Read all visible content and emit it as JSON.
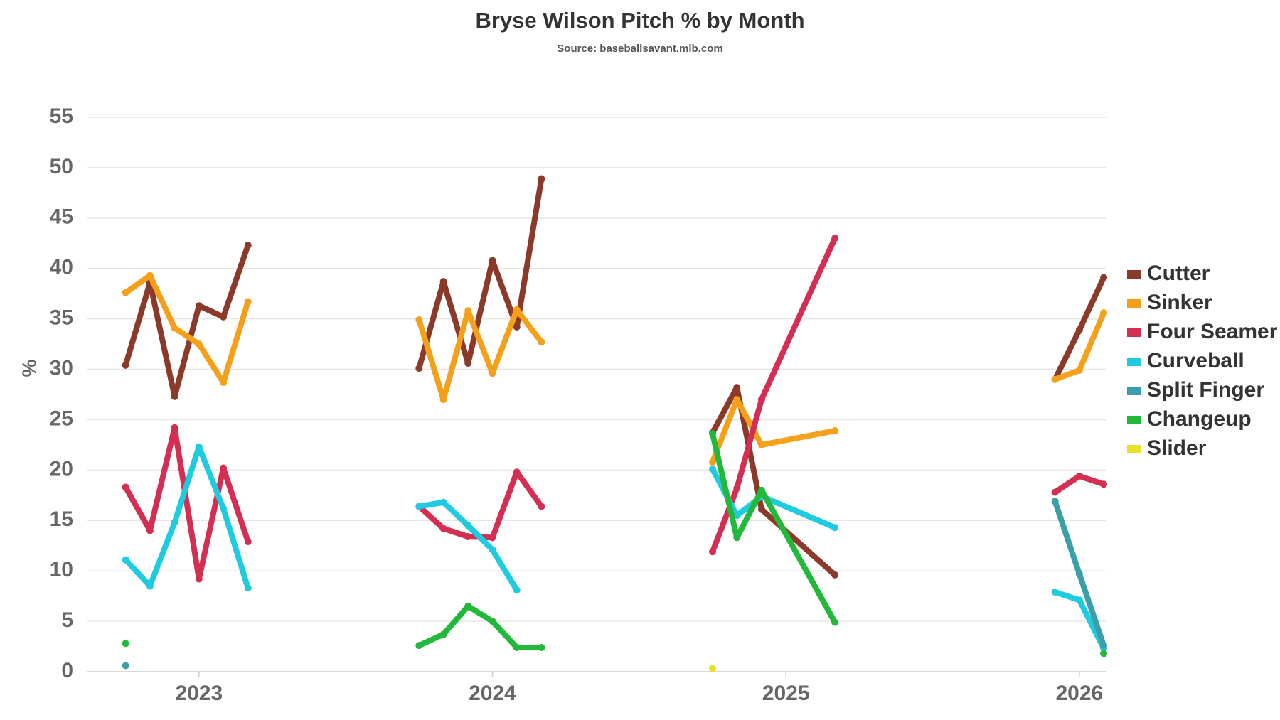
{
  "chart_data": {
    "type": "line",
    "title": "Bryse Wilson Pitch % by Month",
    "subtitle": "Source: baseballsavant.mlb.com",
    "y_label": "%",
    "x": [
      2022.75,
      2022.833,
      2022.917,
      2023.0,
      2023.083,
      2023.167,
      2023.5,
      2023.75,
      2023.833,
      2023.917,
      2024.0,
      2024.083,
      2024.167,
      2024.5,
      2024.75,
      2024.833,
      2024.917,
      2025.167,
      2025.5,
      2025.917,
      2026.0,
      2026.083
    ],
    "xlim": [
      2022.62,
      2026.09
    ],
    "xticks": [
      2023,
      2024,
      2025,
      2026
    ],
    "ylim": [
      0,
      55
    ],
    "yticks": [
      0,
      5,
      10,
      15,
      20,
      25,
      30,
      35,
      40,
      45,
      50,
      55
    ],
    "grid": true,
    "legend": "right",
    "series": [
      {
        "name": "Cutter",
        "color": "#8b3a2a",
        "values": [
          30.4,
          38.6,
          27.3,
          36.3,
          35.2,
          42.3,
          null,
          30.1,
          38.7,
          30.6,
          40.8,
          34.2,
          48.9,
          null,
          23.7,
          28.2,
          16.1,
          9.6,
          null,
          29.0,
          33.9,
          39.1
        ]
      },
      {
        "name": "Sinker",
        "color": "#f5a01a",
        "values": [
          37.6,
          39.3,
          34.1,
          32.5,
          28.7,
          36.7,
          null,
          34.9,
          27.0,
          35.8,
          29.6,
          35.9,
          32.7,
          null,
          20.8,
          27.0,
          22.5,
          23.9,
          null,
          29.0,
          29.9,
          35.6
        ]
      },
      {
        "name": "Four Seamer",
        "color": "#d42e52",
        "values": [
          18.3,
          14.0,
          24.2,
          9.2,
          20.2,
          12.9,
          null,
          16.4,
          14.2,
          13.4,
          13.3,
          19.8,
          16.4,
          null,
          11.9,
          18.2,
          27.0,
          43.0,
          null,
          17.8,
          19.4,
          18.6
        ]
      },
      {
        "name": "Curveball",
        "color": "#1ecbe1",
        "values": [
          11.1,
          8.5,
          14.8,
          22.3,
          16.2,
          8.3,
          null,
          16.4,
          16.8,
          14.5,
          12.1,
          8.1,
          null,
          null,
          20.1,
          15.5,
          17.4,
          14.3,
          null,
          7.9,
          7.1,
          2.3
        ]
      },
      {
        "name": "Split Finger",
        "color": "#3aa0a8",
        "values": [
          0.6,
          null,
          null,
          null,
          null,
          null,
          null,
          null,
          null,
          null,
          null,
          null,
          null,
          null,
          null,
          null,
          null,
          null,
          null,
          16.9,
          9.7,
          2.6
        ]
      },
      {
        "name": "Changeup",
        "color": "#22b93a",
        "values": [
          2.8,
          null,
          null,
          null,
          null,
          null,
          null,
          2.6,
          3.7,
          6.5,
          5.0,
          2.4,
          2.4,
          null,
          23.6,
          13.3,
          18.0,
          4.9,
          null,
          null,
          null,
          1.8
        ]
      },
      {
        "name": "Slider",
        "color": "#e8e02a",
        "values": [
          null,
          null,
          null,
          null,
          null,
          null,
          null,
          null,
          null,
          null,
          null,
          null,
          null,
          null,
          0.3,
          null,
          null,
          null,
          null,
          null,
          null,
          null
        ]
      }
    ]
  }
}
